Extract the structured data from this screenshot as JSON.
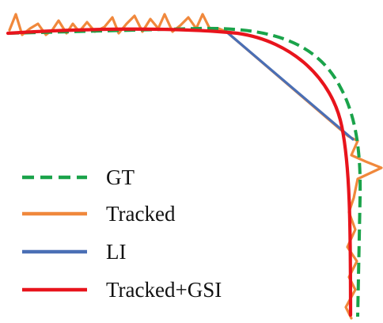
{
  "legend": {
    "gt_label": "GT",
    "tracked_label": "Tracked",
    "li_label": "LI",
    "gsi_label": "Tracked+GSI"
  },
  "colors": {
    "gt": "#1aa34a",
    "tracked": "#f0883c",
    "li": "#4a6fb5",
    "gsi": "#e8141c"
  }
}
